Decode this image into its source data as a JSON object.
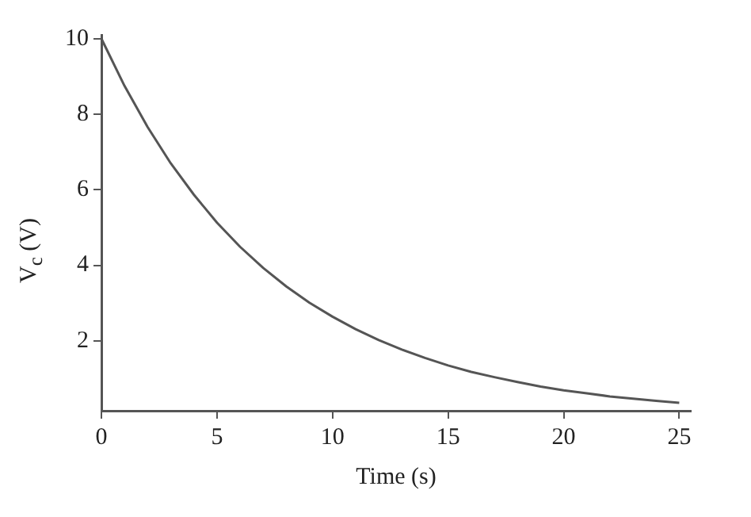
{
  "chart_data": {
    "type": "line",
    "xlabel": "Time (s)",
    "ylabel": "V$_{c}$ (V)",
    "x": [
      0,
      1,
      2,
      3,
      4,
      5,
      6,
      7,
      8,
      9,
      10,
      11,
      12,
      13,
      14,
      15,
      16,
      17,
      18,
      19,
      20,
      21,
      22,
      23,
      24,
      25
    ],
    "series": [
      {
        "color": "#555555",
        "values": [
          10,
          8.75,
          7.66,
          6.7,
          5.87,
          5.13,
          4.49,
          3.93,
          3.44,
          3.01,
          2.64,
          2.31,
          2.02,
          1.77,
          1.55,
          1.35,
          1.18,
          1.04,
          0.91,
          0.79,
          0.69,
          0.61,
          0.53,
          0.47,
          0.41,
          0.36
        ]
      }
    ],
    "xlim": [
      0,
      25.5
    ],
    "xticks": [
      0,
      5,
      10,
      15,
      20,
      25
    ],
    "ylim": [
      0.15,
      10.1
    ],
    "yticks": [
      2,
      4,
      6,
      8,
      10
    ],
    "grid": false,
    "legend": false,
    "marker": "none",
    "line_style": "solid"
  }
}
